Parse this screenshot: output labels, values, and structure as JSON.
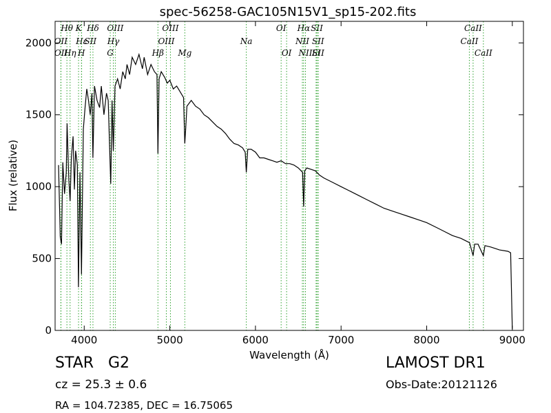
{
  "chart_data": {
    "type": "line",
    "title": "spec-56258-GAC105N15V1_sp15-202.fits",
    "x_label": "Wavelength (Å)",
    "y_label": "Flux (relative)",
    "xlim": [
      3660,
      9130
    ],
    "ylim": [
      0,
      2150
    ],
    "xticks": [
      4000,
      5000,
      6000,
      7000,
      8000,
      9000
    ],
    "yticks": [
      0,
      500,
      1000,
      1500,
      2000
    ],
    "series": [
      {
        "name": "flux",
        "color": "#000000",
        "x": [
          3700,
          3720,
          3735,
          3750,
          3770,
          3790,
          3800,
          3820,
          3835,
          3850,
          3870,
          3885,
          3900,
          3920,
          3933,
          3950,
          3968,
          3990,
          4010,
          4030,
          4050,
          4070,
          4090,
          4102,
          4120,
          4150,
          4180,
          4200,
          4230,
          4260,
          4280,
          4300,
          4310,
          4325,
          4340,
          4360,
          4390,
          4420,
          4450,
          4480,
          4500,
          4530,
          4560,
          4600,
          4640,
          4680,
          4700,
          4740,
          4780,
          4820,
          4850,
          4861,
          4875,
          4900,
          4940,
          4970,
          5000,
          5040,
          5080,
          5120,
          5160,
          5175,
          5185,
          5200,
          5250,
          5300,
          5350,
          5400,
          5450,
          5500,
          5550,
          5600,
          5650,
          5700,
          5750,
          5800,
          5850,
          5880,
          5893,
          5910,
          5950,
          6000,
          6050,
          6100,
          6150,
          6200,
          6250,
          6300,
          6350,
          6400,
          6450,
          6500,
          6550,
          6563,
          6575,
          6600,
          6650,
          6700,
          6750,
          6800,
          6900,
          7000,
          7100,
          7200,
          7300,
          7400,
          7500,
          7600,
          7700,
          7800,
          7900,
          8000,
          8100,
          8200,
          8300,
          8400,
          8500,
          8542,
          8560,
          8600,
          8662,
          8680,
          8750,
          8850,
          8950,
          8980,
          9000
        ],
        "values": [
          1150,
          650,
          600,
          1170,
          950,
          1100,
          1440,
          1050,
          900,
          1200,
          1350,
          980,
          1250,
          1150,
          300,
          1100,
          390,
          1400,
          1550,
          1680,
          1600,
          1500,
          1650,
          1200,
          1700,
          1600,
          1550,
          1700,
          1500,
          1650,
          1600,
          1200,
          1020,
          1600,
          1250,
          1700,
          1750,
          1680,
          1800,
          1750,
          1850,
          1780,
          1900,
          1850,
          1920,
          1820,
          1900,
          1780,
          1850,
          1800,
          1780,
          1230,
          1750,
          1800,
          1760,
          1720,
          1740,
          1680,
          1700,
          1660,
          1620,
          1300,
          1400,
          1560,
          1600,
          1560,
          1540,
          1500,
          1480,
          1450,
          1420,
          1400,
          1370,
          1330,
          1300,
          1290,
          1270,
          1240,
          1100,
          1260,
          1260,
          1240,
          1200,
          1200,
          1190,
          1180,
          1170,
          1180,
          1160,
          1160,
          1150,
          1130,
          1100,
          860,
          1110,
          1130,
          1120,
          1110,
          1080,
          1060,
          1030,
          1000,
          970,
          940,
          910,
          880,
          850,
          830,
          810,
          790,
          770,
          750,
          720,
          690,
          660,
          640,
          610,
          520,
          600,
          600,
          520,
          590,
          580,
          560,
          550,
          540,
          10
        ]
      }
    ],
    "line_color": "#2ca02c",
    "line_label_rows": [
      [
        {
          "label": "Hθ",
          "wavelength": 3798
        },
        {
          "label": "K",
          "wavelength": 3934
        },
        {
          "label": "Hδ",
          "wavelength": 4102
        },
        {
          "label": "OIII",
          "wavelength": 4363
        },
        {
          "label": "OIII",
          "wavelength": 5007
        },
        {
          "label": "OI",
          "wavelength": 6300
        },
        {
          "label": "Hα",
          "wavelength": 6563
        },
        {
          "label": "SII",
          "wavelength": 6717
        },
        {
          "label": "CaII",
          "wavelength": 8542
        }
      ],
      [
        {
          "label": "OII",
          "wavelength": 3727
        },
        {
          "label": "Hε",
          "wavelength": 3970
        },
        {
          "label": "SII",
          "wavelength": 4072
        },
        {
          "label": "Hγ",
          "wavelength": 4340
        },
        {
          "label": "OIII",
          "wavelength": 4959
        },
        {
          "label": "Na",
          "wavelength": 5893
        },
        {
          "label": "NII",
          "wavelength": 6548
        },
        {
          "label": "SII",
          "wavelength": 6731
        },
        {
          "label": "CaII",
          "wavelength": 8498
        }
      ],
      [
        {
          "label": "OII",
          "wavelength": 3729
        },
        {
          "label": "Hη",
          "wavelength": 3835
        },
        {
          "label": "H",
          "wavelength": 3968
        },
        {
          "label": "G",
          "wavelength": 4304
        },
        {
          "label": "Hβ",
          "wavelength": 4861
        },
        {
          "label": "Mg",
          "wavelength": 5175
        },
        {
          "label": "OI",
          "wavelength": 6364
        },
        {
          "label": "NII",
          "wavelength": 6584
        },
        {
          "label": "Li",
          "wavelength": 6708
        },
        {
          "label": "SII",
          "wavelength": 6733
        },
        {
          "label": "CaII",
          "wavelength": 8662
        }
      ]
    ],
    "object_class": "STAR   G2",
    "redshift": "cz = 25.3 ± 0.6",
    "coordinates": "RA = 104.72385, DEC = 16.75065",
    "survey": "LAMOST DR1",
    "obs_date": "Obs-Date:20121126"
  }
}
